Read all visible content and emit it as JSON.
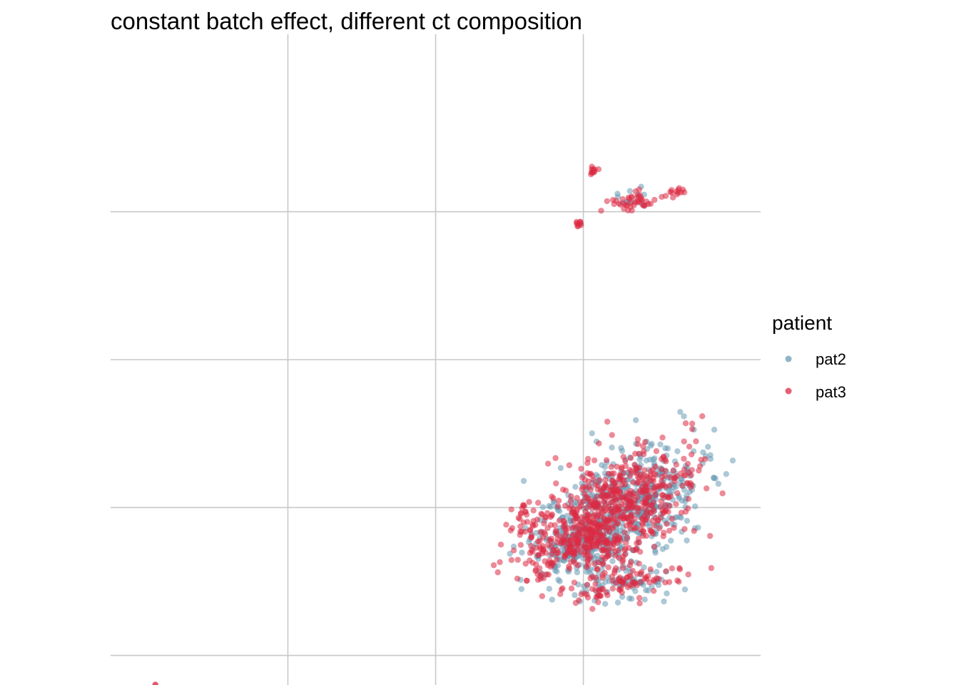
{
  "chart_data": {
    "type": "scatter",
    "title": "constant batch effect, different ct composition",
    "xlabel": "",
    "ylabel": "",
    "grid": true,
    "axis_ticks_labels": false,
    "xlim": [
      -11.0,
      11.0
    ],
    "ylim": [
      -11.0,
      11.0
    ],
    "x_gridlines": [
      -5,
      0,
      5
    ],
    "y_gridlines": [
      -10,
      -5,
      0,
      5
    ],
    "point_alpha": 0.55,
    "legend": {
      "title": "patient",
      "position": "right"
    },
    "series": [
      {
        "name": "pat2",
        "color": "#6a9bb5",
        "clusters": [
          {
            "cx": 6.4,
            "cy": -4.9,
            "sx": 1.4,
            "sy": 0.85,
            "tilt": 0.55,
            "n": 520,
            "seed": 11
          },
          {
            "cx": 4.9,
            "cy": -6.3,
            "sx": 0.9,
            "sy": 0.55,
            "tilt": 0.2,
            "n": 160,
            "seed": 12
          },
          {
            "cx": 6.3,
            "cy": -7.6,
            "sx": 0.9,
            "sy": 0.3,
            "tilt": 0.1,
            "n": 70,
            "seed": 13
          },
          {
            "cx": 6.8,
            "cy": 5.5,
            "sx": 0.4,
            "sy": 0.2,
            "tilt": 0.0,
            "n": 12,
            "seed": 14
          }
        ]
      },
      {
        "name": "pat3",
        "color": "#dc2a44",
        "clusters": [
          {
            "cx": 6.3,
            "cy": -4.9,
            "sx": 1.4,
            "sy": 0.8,
            "tilt": 0.55,
            "n": 540,
            "seed": 21
          },
          {
            "cx": 4.7,
            "cy": -6.2,
            "sx": 0.95,
            "sy": 0.55,
            "tilt": 0.2,
            "n": 220,
            "seed": 22
          },
          {
            "cx": 3.2,
            "cy": -5.5,
            "sx": 0.3,
            "sy": 0.3,
            "tilt": 0.0,
            "n": 30,
            "seed": 23
          },
          {
            "cx": 6.3,
            "cy": -7.6,
            "sx": 1.0,
            "sy": 0.3,
            "tilt": 0.1,
            "n": 80,
            "seed": 24
          },
          {
            "cx": 5.6,
            "cy": -8.0,
            "sx": 0.1,
            "sy": 0.1,
            "tilt": 0.0,
            "n": 10,
            "seed": 25
          },
          {
            "cx": 6.7,
            "cy": 5.4,
            "sx": 0.45,
            "sy": 0.18,
            "tilt": 0.0,
            "n": 40,
            "seed": 26
          },
          {
            "cx": 5.3,
            "cy": 6.4,
            "sx": 0.08,
            "sy": 0.08,
            "tilt": 0.0,
            "n": 12,
            "seed": 27
          },
          {
            "cx": 8.2,
            "cy": 5.7,
            "sx": 0.25,
            "sy": 0.08,
            "tilt": 0.3,
            "n": 14,
            "seed": 28
          },
          {
            "cx": 4.8,
            "cy": 4.6,
            "sx": 0.08,
            "sy": 0.06,
            "tilt": 0.0,
            "n": 10,
            "seed": 29
          },
          {
            "cx": -9.5,
            "cy": -11.0,
            "sx": 0.01,
            "sy": 0.01,
            "tilt": 0.0,
            "n": 3,
            "seed": 30
          }
        ]
      }
    ]
  }
}
